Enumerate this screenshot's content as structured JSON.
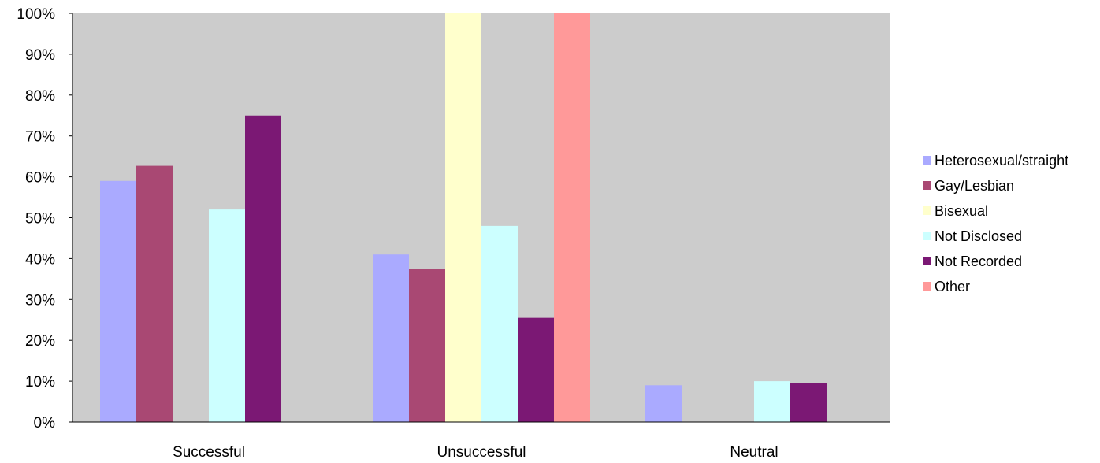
{
  "chart_data": {
    "type": "bar",
    "categories": [
      "Successful",
      "Unsuccessful",
      "Neutral"
    ],
    "series": [
      {
        "name": "Heterosexual/straight",
        "color": "#aaaaff",
        "values": [
          59,
          41,
          9
        ]
      },
      {
        "name": "Gay/Lesbian",
        "color": "#a94873",
        "values": [
          62.7,
          37.5,
          0
        ]
      },
      {
        "name": "Bisexual",
        "color": "#ffffcc",
        "values": [
          0,
          100,
          0
        ]
      },
      {
        "name": "Not Disclosed",
        "color": "#ccffff",
        "values": [
          52,
          48,
          10
        ]
      },
      {
        "name": "Not Recorded",
        "color": "#7b1874",
        "values": [
          75,
          25.5,
          9.5
        ]
      },
      {
        "name": "Other",
        "color": "#ff9999",
        "values": [
          0,
          100,
          0
        ]
      }
    ],
    "yticks": [
      "0%",
      "10%",
      "20%",
      "30%",
      "40%",
      "50%",
      "60%",
      "70%",
      "80%",
      "90%",
      "100%"
    ],
    "ylim": [
      0,
      100
    ],
    "title": "",
    "xlabel": "",
    "ylabel": "",
    "plot_background": "#cccccc",
    "grid": false,
    "legend_position": "right"
  }
}
